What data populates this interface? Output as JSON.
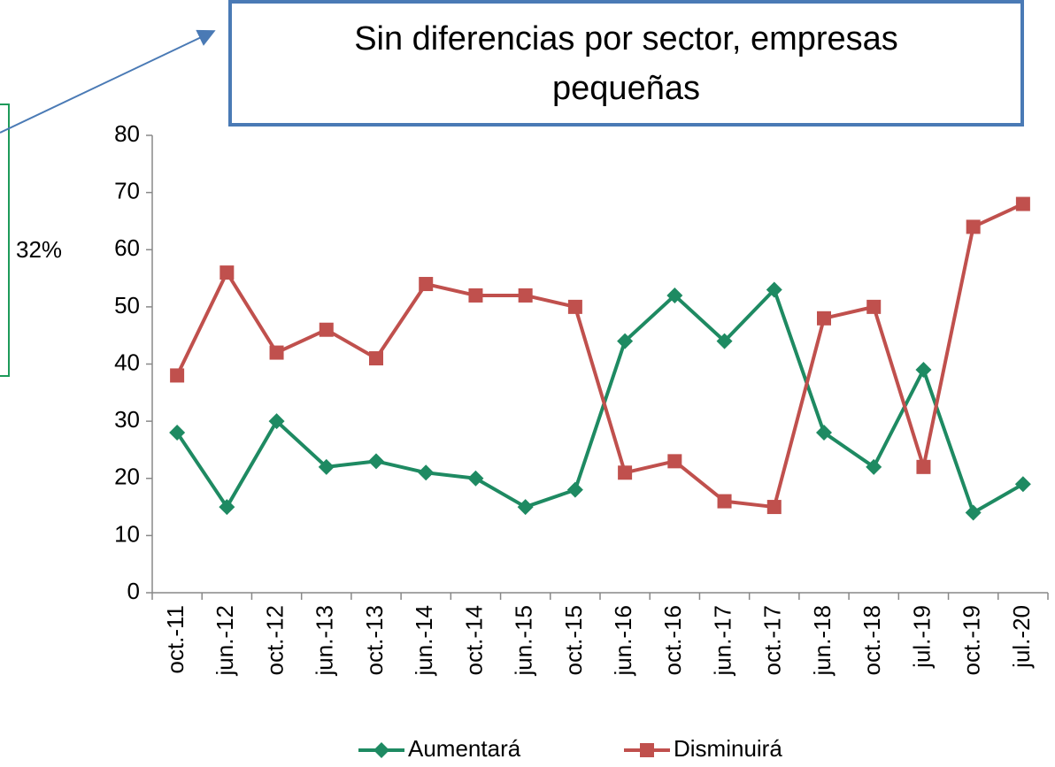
{
  "chart_data": {
    "type": "line",
    "title": "Sin diferencias por sector, empresas pequeñas",
    "annotation": "32%",
    "categories": [
      "oct.-11",
      "jun.-12",
      "oct.-12",
      "jun.-13",
      "oct.-13",
      "jun.-14",
      "oct.-14",
      "jun.-15",
      "oct.-15",
      "jun.-16",
      "oct.-16",
      "jun.-17",
      "oct.-17",
      "jun.-18",
      "oct.-18",
      "jul.-19",
      "oct.-19",
      "jul.-20"
    ],
    "series": [
      {
        "name": "Aumentará",
        "color": "#1e8a62",
        "marker": "diamond",
        "values": [
          28,
          15,
          30,
          22,
          23,
          21,
          20,
          15,
          18,
          44,
          52,
          44,
          53,
          28,
          22,
          39,
          14,
          19
        ]
      },
      {
        "name": "Disminuirá",
        "color": "#c0504d",
        "marker": "square",
        "values": [
          38,
          56,
          42,
          46,
          41,
          54,
          52,
          52,
          50,
          21,
          23,
          16,
          15,
          48,
          50,
          22,
          64,
          68
        ]
      }
    ],
    "ylim": [
      0,
      80
    ],
    "yticks": [
      0,
      10,
      20,
      30,
      40,
      50,
      60,
      70,
      80
    ],
    "grid": false,
    "legend": "bottom"
  }
}
